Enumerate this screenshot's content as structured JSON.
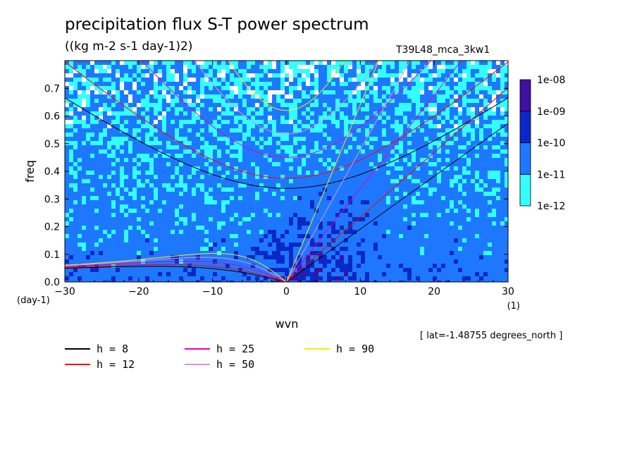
{
  "chart_data": {
    "type": "heatmap",
    "title": "precipitation flux S-T power spectrum",
    "units_label": "((kg m-2 s-1 day-1)2)",
    "run_name": "T39L48_mca_3kw1",
    "xlabel": "wvn",
    "ylabel": "freq",
    "x_unit_label": "(1)",
    "y_unit_label": "(day-1)",
    "annotation": "[ lat=-1.48755 degrees_north ]",
    "xlim": [
      -30,
      30
    ],
    "ylim": [
      0,
      0.8
    ],
    "x_ticks": [
      -30,
      -20,
      -10,
      0,
      10,
      20,
      30
    ],
    "x_tick_labels": [
      "−30",
      "−20",
      "−10",
      "0",
      "10",
      "20",
      "30"
    ],
    "y_ticks": [
      0.0,
      0.1,
      0.2,
      0.3,
      0.4,
      0.5,
      0.6,
      0.7
    ],
    "y_tick_labels": [
      "0.0",
      "0.1",
      "0.2",
      "0.3",
      "0.4",
      "0.5",
      "0.6",
      "0.7"
    ],
    "colorbar": {
      "scale": "log",
      "levels": [
        "1e-12",
        "1e-11",
        "1e-10",
        "1e-09",
        "1e-08"
      ],
      "colors": [
        "#33ffff",
        "#1e78ff",
        "#0a28c8",
        "#4010a0"
      ]
    },
    "legend_location": "bottom",
    "dispersion_curves": [
      {
        "name": "h =  8",
        "h": 8,
        "color": "#000000"
      },
      {
        "name": "h = 12",
        "h": 12,
        "color": "#ff0000"
      },
      {
        "name": "h = 25",
        "h": 25,
        "color": "#e000c0"
      },
      {
        "name": "h = 50",
        "h": 50,
        "color": "#e090e0"
      },
      {
        "name": "h = 90",
        "h": 90,
        "color": "#f0f000"
      }
    ],
    "field_description_levels": {
      "background": "1e-11",
      "low_freq_band_max": "1e-10",
      "high_freq_top_min": "1e-12"
    }
  }
}
